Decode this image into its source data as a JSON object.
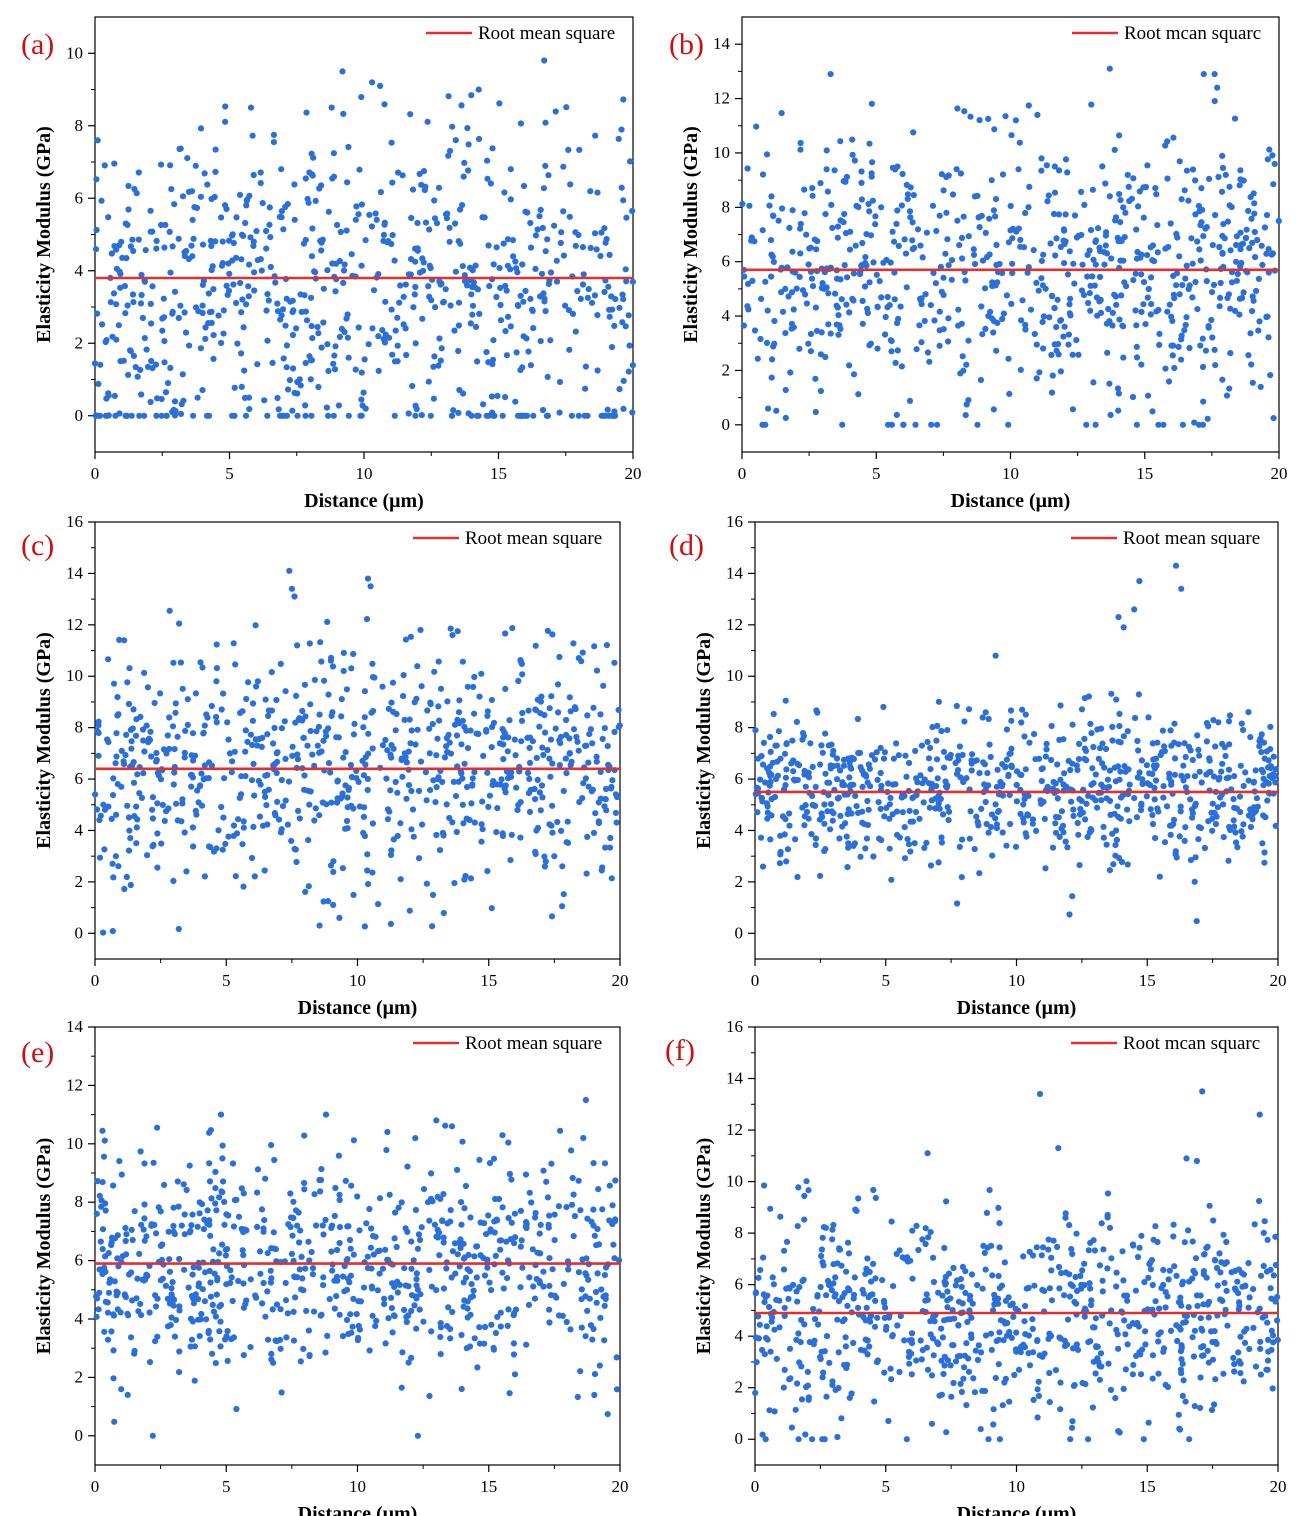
{
  "figure": {
    "point_color": "#2a70d8",
    "rms_color": "#e03030",
    "label_color": "#cc1111",
    "axis_color": "#000000"
  },
  "chart_data": [
    {
      "type": "scatter",
      "panel_label": "(a)",
      "title": "",
      "xlabel": "Distance (μm)",
      "ylabel": "Elasticity Modulus (GPa)",
      "xlim": [
        0,
        20
      ],
      "ylim": [
        -1,
        11
      ],
      "xticks": [
        0,
        5,
        10,
        15,
        20
      ],
      "yticks": [
        0,
        2,
        4,
        6,
        8,
        10
      ],
      "legend": "Root mean square",
      "legend_position": "top-right",
      "rms": 3.8,
      "series": [
        {
          "name": "Elasticity Modulus",
          "n_points": 800,
          "min": 0,
          "max": 9.8,
          "spread": 2.3,
          "zero_fraction": 0.08,
          "outliers": [
            [
              9.2,
              9.5
            ],
            [
              10.3,
              9.2
            ],
            [
              10.6,
              9.1
            ],
            [
              16.7,
              9.8
            ],
            [
              5.8,
              8.5
            ],
            [
              8.8,
              8.5
            ],
            [
              0.1,
              7.6
            ]
          ]
        }
      ]
    },
    {
      "type": "scatter",
      "panel_label": "(b)",
      "title": "",
      "xlabel": "Distance (μm)",
      "ylabel": "Elasticity Modulus (GPa)",
      "xlim": [
        0,
        20
      ],
      "ylim": [
        -1,
        15
      ],
      "xticks": [
        0,
        5,
        10,
        15,
        20
      ],
      "yticks": [
        0,
        2,
        4,
        6,
        8,
        10,
        12,
        14
      ],
      "legend": "Root mcan squarc",
      "legend_position": "top-right",
      "rms": 5.7,
      "series": [
        {
          "name": "Elasticity Modulus",
          "n_points": 800,
          "min": 0,
          "max": 13.1,
          "spread": 2.4,
          "zero_fraction": 0.02,
          "outliers": [
            [
              3.3,
              12.9
            ],
            [
              13.7,
              13.1
            ],
            [
              17.2,
              12.9
            ],
            [
              17.6,
              12.9
            ],
            [
              17.7,
              12.4
            ],
            [
              11.0,
              11.4
            ],
            [
              10.2,
              11.2
            ]
          ]
        }
      ]
    },
    {
      "type": "scatter",
      "panel_label": "(c)",
      "title": "",
      "xlabel": "Distance (μm)",
      "ylabel": "Elasticity Modulus (GPa)",
      "xlim": [
        0,
        20
      ],
      "ylim": [
        -1,
        16
      ],
      "xticks": [
        0,
        5,
        10,
        15,
        20
      ],
      "yticks": [
        0,
        2,
        4,
        6,
        8,
        10,
        12,
        14,
        16
      ],
      "legend": "Root mean square",
      "legend_position": "top-right",
      "rms": 6.4,
      "series": [
        {
          "name": "Elasticity Modulus",
          "n_points": 800,
          "min": 0,
          "max": 14.1,
          "spread": 2.4,
          "zero_fraction": 0.0,
          "outliers": [
            [
              7.4,
              14.1
            ],
            [
              7.5,
              13.4
            ],
            [
              7.6,
              13.1
            ],
            [
              10.4,
              13.8
            ],
            [
              10.5,
              13.5
            ],
            [
              12.4,
              11.8
            ],
            [
              7.7,
              11.2
            ]
          ]
        }
      ]
    },
    {
      "type": "scatter",
      "panel_label": "(d)",
      "title": "",
      "xlabel": "Distance (μm)",
      "ylabel": "Elasticity Modulus (GPa)",
      "xlim": [
        0,
        20
      ],
      "ylim": [
        -1,
        16
      ],
      "xticks": [
        0,
        5,
        10,
        15,
        20
      ],
      "yticks": [
        0,
        2,
        4,
        6,
        8,
        10,
        12,
        14,
        16
      ],
      "legend": "Root mean square",
      "legend_position": "top-right",
      "rms": 5.5,
      "series": [
        {
          "name": "Elasticity Modulus",
          "n_points": 800,
          "min": 0.3,
          "max": 14.3,
          "spread": 1.5,
          "zero_fraction": 0.0,
          "outliers": [
            [
              16.1,
              14.3
            ],
            [
              14.7,
              13.7
            ],
            [
              16.3,
              13.4
            ],
            [
              14.5,
              12.6
            ],
            [
              13.9,
              12.3
            ],
            [
              14.1,
              11.9
            ],
            [
              9.2,
              10.8
            ]
          ]
        }
      ]
    },
    {
      "type": "scatter",
      "panel_label": "(e)",
      "title": "",
      "xlabel": "Distance (μm)",
      "ylabel": "Elasticity Modulus (GPa)",
      "xlim": [
        0,
        20
      ],
      "ylim": [
        -1,
        14
      ],
      "xticks": [
        0,
        5,
        10,
        15,
        20
      ],
      "yticks": [
        0,
        2,
        4,
        6,
        8,
        10,
        12,
        14
      ],
      "legend": "Root mean square",
      "legend_position": "top-right",
      "rms": 5.9,
      "series": [
        {
          "name": "Elasticity Modulus",
          "n_points": 800,
          "min": 0,
          "max": 11.5,
          "spread": 2.0,
          "zero_fraction": 0.0,
          "outliers": [
            [
              18.7,
              11.5
            ],
            [
              4.8,
              11.0
            ],
            [
              8.8,
              11.0
            ],
            [
              13.0,
              10.8
            ],
            [
              13.6,
              10.6
            ],
            [
              18.6,
              10.2
            ],
            [
              2.2,
              0.0
            ],
            [
              12.3,
              0.0
            ]
          ]
        }
      ]
    },
    {
      "type": "scatter",
      "panel_label": "(f)",
      "title": "",
      "xlabel": "Distance (μm)",
      "ylabel": "Elasticity Modulus (GPa)",
      "xlim": [
        0,
        20
      ],
      "ylim": [
        -1,
        16
      ],
      "xticks": [
        0,
        5,
        10,
        15,
        20
      ],
      "yticks": [
        0,
        2,
        4,
        6,
        8,
        10,
        12,
        14,
        16
      ],
      "legend": "Root mcan squarc",
      "legend_position": "top-right",
      "rms": 4.9,
      "series": [
        {
          "name": "Elasticity Modulus",
          "n_points": 800,
          "min": 0,
          "max": 13.5,
          "spread": 2.0,
          "zero_fraction": 0.02,
          "outliers": [
            [
              17.1,
              13.5
            ],
            [
              10.9,
              13.4
            ],
            [
              19.3,
              12.6
            ],
            [
              11.6,
              11.3
            ],
            [
              6.6,
              11.1
            ],
            [
              16.5,
              10.9
            ],
            [
              16.9,
              10.8
            ]
          ]
        }
      ]
    }
  ]
}
